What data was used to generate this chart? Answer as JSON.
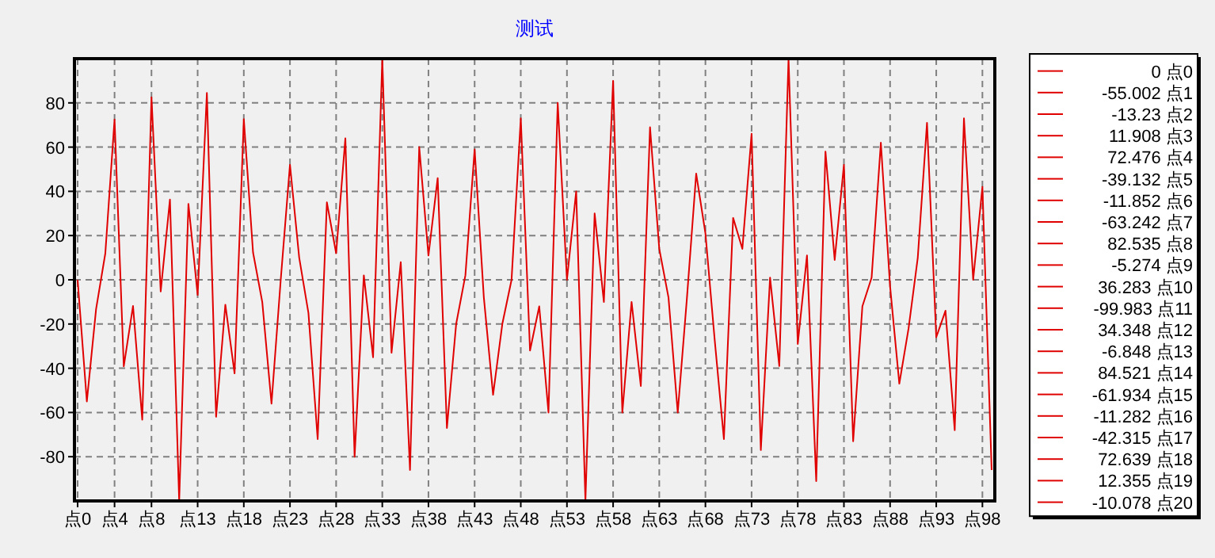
{
  "chart_data": {
    "type": "line",
    "title": "测试",
    "categories": [
      "点0",
      null,
      null,
      null,
      "点4",
      null,
      null,
      null,
      "点8",
      null,
      null,
      null,
      null,
      "点13",
      null,
      null,
      null,
      null,
      "点18",
      null,
      null,
      null,
      null,
      "点23",
      null,
      null,
      null,
      null,
      "点28",
      null,
      null,
      null,
      null,
      "点33",
      null,
      null,
      null,
      null,
      "点38",
      null,
      null,
      null,
      null,
      "点43",
      null,
      null,
      null,
      null,
      "点48",
      null,
      null,
      null,
      null,
      "点53",
      null,
      null,
      null,
      null,
      "点58",
      null,
      null,
      null,
      null,
      "点63",
      null,
      null,
      null,
      null,
      "点68",
      null,
      null,
      null,
      null,
      "点73",
      null,
      null,
      null,
      null,
      "点78",
      null,
      null,
      null,
      null,
      "点83",
      null,
      null,
      null,
      null,
      "点88",
      null,
      null,
      null,
      null,
      "点93",
      null,
      null,
      null,
      null,
      "点98",
      null
    ],
    "series": [
      {
        "color": "#e00000",
        "values": [
          0,
          -55.002,
          -13.23,
          11.908,
          72.476,
          -39.132,
          -11.852,
          -63.242,
          82.535,
          -5.274,
          36.283,
          -99.983,
          34.348,
          -6.848,
          84.521,
          -61.934,
          -11.282,
          -42.315,
          72.639,
          12.355,
          -10.078,
          -56,
          0,
          52,
          10,
          -15,
          -72,
          35,
          12,
          64,
          -80,
          2,
          -35,
          100,
          -33,
          8,
          -86,
          60,
          11,
          46,
          -67,
          -20,
          2,
          59,
          -8,
          -52,
          -20,
          0,
          73,
          -32,
          -12,
          -60,
          80,
          0,
          40,
          -100,
          30,
          -10,
          90,
          -60,
          -10,
          -48,
          69,
          14,
          -8,
          -60,
          -8,
          48,
          21,
          -27,
          -72,
          28,
          14,
          66,
          -77,
          1,
          -39,
          100,
          -29,
          11,
          -91,
          58,
          9,
          52,
          -73,
          -12,
          1,
          62,
          -3,
          -47,
          -22,
          10,
          71,
          -26,
          -14,
          -68,
          73,
          0,
          42,
          -86
        ]
      }
    ],
    "annotations": [
      "0 点0",
      "-55.002 点1",
      "-13.23 点2",
      "11.908 点3",
      "72.476 点4",
      "-39.132 点5",
      "-11.852 点6",
      "-63.242 点7",
      "82.535 点8",
      "-5.274 点9",
      "36.283 点10",
      "-99.983 点11",
      "34.348 点12",
      "-6.848 点13",
      "84.521 点14",
      "-61.934 点15",
      "-11.282 点16",
      "-42.315 点17",
      "72.639 点18",
      "12.355 点19",
      "-10.078 点20"
    ],
    "ylim": [
      -100,
      100
    ],
    "yticks": [
      -80,
      -60,
      -40,
      -20,
      0,
      20,
      40,
      60,
      80
    ],
    "grid": true
  }
}
